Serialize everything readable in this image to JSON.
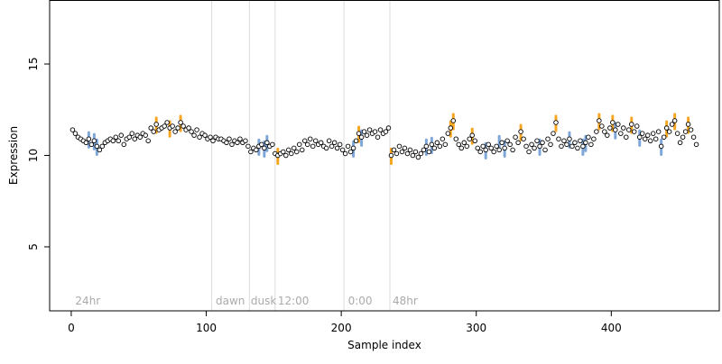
{
  "chart_data": {
    "type": "scatter",
    "xlabel": "Sample index",
    "ylabel": "Expression",
    "xlim": [
      -16,
      480
    ],
    "ylim": [
      1.5,
      18.5
    ],
    "x_ticks": [
      0,
      100,
      200,
      300,
      400
    ],
    "y_ticks": [
      5,
      10,
      15
    ],
    "grid": false,
    "region_lines": [
      104,
      132,
      151,
      202,
      236
    ],
    "region_labels": [
      {
        "text": "24hr",
        "x": 3
      },
      {
        "text": "dawn",
        "x": 107
      },
      {
        "text": "dusk",
        "x": 133
      },
      {
        "text": "12:00",
        "x": 153
      },
      {
        "text": "0:00",
        "x": 205
      },
      {
        "text": "48hr",
        "x": 238
      }
    ],
    "colors": {
      "points_fill": "#ffffff",
      "points_stroke": "#000000",
      "highlight_orange": "#f5a623",
      "highlight_blue": "#7ea6d8",
      "region_line": "#dddddd",
      "region_label": "#aaaaaa"
    },
    "series": [
      {
        "values": [
          [
            1,
            11.4
          ],
          [
            3,
            11.2
          ],
          [
            5,
            11.0
          ],
          [
            7,
            10.9
          ],
          [
            9,
            10.8
          ],
          [
            11,
            10.7
          ],
          [
            13,
            10.9
          ],
          [
            15,
            10.6
          ],
          [
            17,
            10.8
          ],
          [
            19,
            10.5
          ],
          [
            21,
            10.3
          ],
          [
            23,
            10.5
          ],
          [
            25,
            10.7
          ],
          [
            27,
            10.8
          ],
          [
            29,
            10.9
          ],
          [
            31,
            10.8
          ],
          [
            33,
            11.0
          ],
          [
            35,
            10.8
          ],
          [
            37,
            11.1
          ],
          [
            39,
            10.6
          ],
          [
            41,
            10.9
          ],
          [
            43,
            11.0
          ],
          [
            45,
            11.2
          ],
          [
            47,
            10.9
          ],
          [
            49,
            11.1
          ],
          [
            51,
            11.0
          ],
          [
            53,
            11.2
          ],
          [
            55,
            11.1
          ],
          [
            57,
            10.8
          ],
          [
            59,
            11.5
          ],
          [
            61,
            11.3
          ],
          [
            63,
            11.7
          ],
          [
            65,
            11.4
          ],
          [
            67,
            11.5
          ],
          [
            69,
            11.6
          ],
          [
            71,
            11.8
          ],
          [
            73,
            11.5
          ],
          [
            75,
            11.6
          ],
          [
            77,
            11.3
          ],
          [
            79,
            11.5
          ],
          [
            81,
            11.8
          ],
          [
            83,
            11.6
          ],
          [
            85,
            11.4
          ],
          [
            87,
            11.5
          ],
          [
            89,
            11.3
          ],
          [
            91,
            11.1
          ],
          [
            93,
            11.4
          ],
          [
            95,
            11.0
          ],
          [
            97,
            11.2
          ],
          [
            99,
            11.1
          ],
          [
            101,
            10.9
          ],
          [
            103,
            11.0
          ],
          [
            105,
            10.8
          ],
          [
            107,
            11.0
          ],
          [
            109,
            10.9
          ],
          [
            111,
            10.9
          ],
          [
            113,
            10.8
          ],
          [
            115,
            10.7
          ],
          [
            117,
            10.9
          ],
          [
            119,
            10.6
          ],
          [
            121,
            10.8
          ],
          [
            123,
            10.7
          ],
          [
            125,
            10.9
          ],
          [
            127,
            10.7
          ],
          [
            129,
            10.8
          ],
          [
            131,
            10.5
          ],
          [
            133,
            10.2
          ],
          [
            135,
            10.4
          ],
          [
            137,
            10.3
          ],
          [
            139,
            10.5
          ],
          [
            141,
            10.6
          ],
          [
            143,
            10.4
          ],
          [
            145,
            10.7
          ],
          [
            147,
            10.5
          ],
          [
            149,
            10.6
          ],
          [
            151,
            10.1
          ],
          [
            153,
            10.0
          ],
          [
            155,
            10.1
          ],
          [
            157,
            10.2
          ],
          [
            159,
            10.0
          ],
          [
            161,
            10.3
          ],
          [
            163,
            10.1
          ],
          [
            165,
            10.4
          ],
          [
            167,
            10.2
          ],
          [
            169,
            10.6
          ],
          [
            171,
            10.3
          ],
          [
            173,
            10.8
          ],
          [
            175,
            10.6
          ],
          [
            177,
            10.9
          ],
          [
            179,
            10.5
          ],
          [
            181,
            10.8
          ],
          [
            183,
            10.6
          ],
          [
            185,
            10.7
          ],
          [
            187,
            10.5
          ],
          [
            189,
            10.4
          ],
          [
            191,
            10.8
          ],
          [
            193,
            10.5
          ],
          [
            195,
            10.7
          ],
          [
            197,
            10.4
          ],
          [
            199,
            10.6
          ],
          [
            201,
            10.3
          ],
          [
            203,
            10.1
          ],
          [
            205,
            10.5
          ],
          [
            207,
            10.2
          ],
          [
            209,
            10.4
          ],
          [
            211,
            10.8
          ],
          [
            213,
            11.2
          ],
          [
            215,
            11.0
          ],
          [
            217,
            11.3
          ],
          [
            219,
            11.1
          ],
          [
            221,
            11.4
          ],
          [
            223,
            11.2
          ],
          [
            225,
            11.3
          ],
          [
            227,
            11.0
          ],
          [
            229,
            11.4
          ],
          [
            231,
            11.2
          ],
          [
            233,
            11.3
          ],
          [
            235,
            11.5
          ],
          [
            237,
            10.0
          ],
          [
            239,
            10.3
          ],
          [
            241,
            10.1
          ],
          [
            243,
            10.5
          ],
          [
            245,
            10.2
          ],
          [
            247,
            10.4
          ],
          [
            249,
            10.1
          ],
          [
            251,
            10.3
          ],
          [
            253,
            10.0
          ],
          [
            255,
            10.2
          ],
          [
            257,
            9.9
          ],
          [
            259,
            10.1
          ],
          [
            261,
            10.3
          ],
          [
            263,
            10.5
          ],
          [
            265,
            10.2
          ],
          [
            267,
            10.6
          ],
          [
            269,
            10.4
          ],
          [
            271,
            10.7
          ],
          [
            273,
            10.5
          ],
          [
            275,
            10.9
          ],
          [
            277,
            10.6
          ],
          [
            279,
            11.2
          ],
          [
            281,
            11.5
          ],
          [
            283,
            11.9
          ],
          [
            285,
            10.9
          ],
          [
            287,
            10.6
          ],
          [
            289,
            10.4
          ],
          [
            291,
            10.7
          ],
          [
            293,
            10.5
          ],
          [
            295,
            10.9
          ],
          [
            297,
            11.1
          ],
          [
            299,
            10.8
          ],
          [
            301,
            10.4
          ],
          [
            303,
            10.2
          ],
          [
            305,
            10.5
          ],
          [
            307,
            10.3
          ],
          [
            309,
            10.6
          ],
          [
            311,
            10.4
          ],
          [
            313,
            10.2
          ],
          [
            315,
            10.5
          ],
          [
            317,
            10.3
          ],
          [
            319,
            10.7
          ],
          [
            321,
            10.4
          ],
          [
            323,
            10.8
          ],
          [
            325,
            10.6
          ],
          [
            327,
            10.3
          ],
          [
            329,
            11.0
          ],
          [
            331,
            10.7
          ],
          [
            333,
            11.3
          ],
          [
            335,
            10.9
          ],
          [
            337,
            10.5
          ],
          [
            339,
            10.2
          ],
          [
            341,
            10.6
          ],
          [
            343,
            10.4
          ],
          [
            345,
            10.8
          ],
          [
            347,
            10.5
          ],
          [
            349,
            10.7
          ],
          [
            351,
            10.3
          ],
          [
            353,
            10.9
          ],
          [
            355,
            10.6
          ],
          [
            357,
            11.2
          ],
          [
            359,
            11.8
          ],
          [
            361,
            10.9
          ],
          [
            363,
            10.5
          ],
          [
            365,
            10.8
          ],
          [
            367,
            10.6
          ],
          [
            369,
            10.9
          ],
          [
            371,
            10.5
          ],
          [
            373,
            10.7
          ],
          [
            375,
            10.4
          ],
          [
            377,
            10.8
          ],
          [
            379,
            10.5
          ],
          [
            381,
            10.7
          ],
          [
            383,
            11.0
          ],
          [
            385,
            10.6
          ],
          [
            387,
            10.9
          ],
          [
            389,
            11.3
          ],
          [
            391,
            11.9
          ],
          [
            393,
            11.6
          ],
          [
            395,
            11.3
          ],
          [
            397,
            11.1
          ],
          [
            399,
            11.5
          ],
          [
            401,
            11.8
          ],
          [
            403,
            11.4
          ],
          [
            405,
            11.7
          ],
          [
            407,
            11.2
          ],
          [
            409,
            11.5
          ],
          [
            411,
            11.0
          ],
          [
            413,
            11.4
          ],
          [
            415,
            11.7
          ],
          [
            417,
            11.3
          ],
          [
            419,
            11.6
          ],
          [
            421,
            11.0
          ],
          [
            423,
            11.2
          ],
          [
            425,
            10.9
          ],
          [
            427,
            11.1
          ],
          [
            429,
            10.8
          ],
          [
            431,
            11.2
          ],
          [
            433,
            10.9
          ],
          [
            435,
            11.3
          ],
          [
            437,
            10.5
          ],
          [
            439,
            11.0
          ],
          [
            441,
            11.5
          ],
          [
            443,
            11.3
          ],
          [
            445,
            11.7
          ],
          [
            447,
            11.9
          ],
          [
            449,
            11.2
          ],
          [
            451,
            10.7
          ],
          [
            453,
            11.0
          ],
          [
            455,
            11.3
          ],
          [
            457,
            11.7
          ],
          [
            459,
            11.4
          ],
          [
            461,
            11.0
          ],
          [
            463,
            10.6
          ]
        ],
        "highlight_orange": [
          [
            63,
            11.7
          ],
          [
            73,
            11.5
          ],
          [
            81,
            11.8
          ],
          [
            153,
            10.0
          ],
          [
            213,
            11.2
          ],
          [
            237,
            10.0
          ],
          [
            281,
            11.5
          ],
          [
            283,
            11.9
          ],
          [
            297,
            11.1
          ],
          [
            333,
            11.3
          ],
          [
            359,
            11.8
          ],
          [
            391,
            11.9
          ],
          [
            401,
            11.8
          ],
          [
            415,
            11.7
          ],
          [
            441,
            11.5
          ],
          [
            447,
            11.9
          ],
          [
            457,
            11.7
          ]
        ],
        "highlight_blue": [
          [
            13,
            10.9
          ],
          [
            17,
            10.8
          ],
          [
            19,
            10.5
          ],
          [
            139,
            10.5
          ],
          [
            143,
            10.4
          ],
          [
            145,
            10.7
          ],
          [
            209,
            10.4
          ],
          [
            215,
            11.0
          ],
          [
            263,
            10.5
          ],
          [
            267,
            10.6
          ],
          [
            307,
            10.3
          ],
          [
            317,
            10.7
          ],
          [
            321,
            10.4
          ],
          [
            347,
            10.5
          ],
          [
            369,
            10.9
          ],
          [
            379,
            10.5
          ],
          [
            381,
            10.7
          ],
          [
            403,
            11.4
          ],
          [
            421,
            11.0
          ],
          [
            437,
            10.5
          ]
        ]
      }
    ]
  }
}
